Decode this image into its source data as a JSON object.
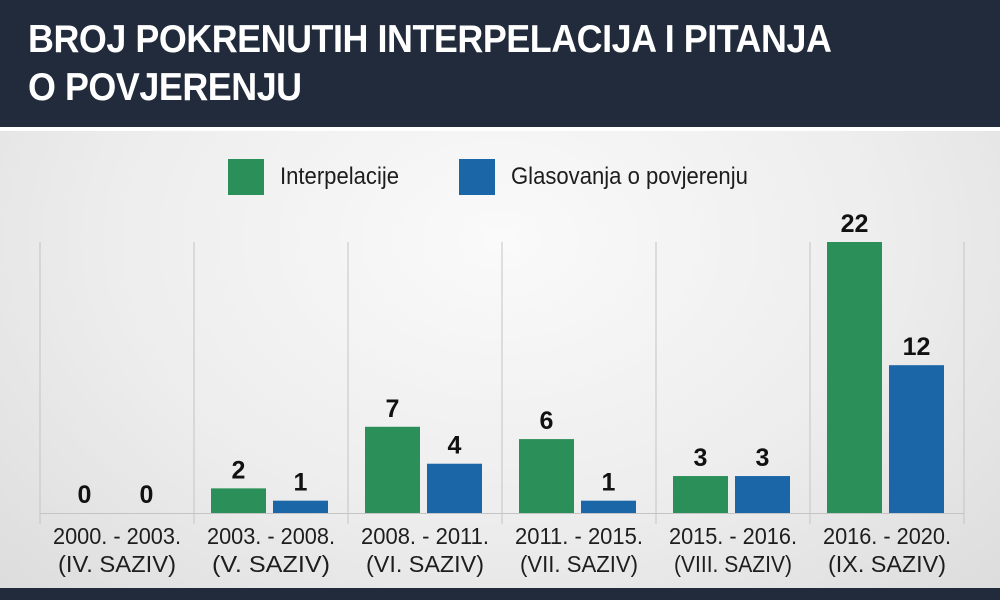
{
  "title_lines": [
    "BROJ POKRENUTIH INTERPELACIJA I PITANJA",
    "O POVJERENJU"
  ],
  "colors": {
    "header_bg": "#212b3c",
    "interpelacije": "#2a8f58",
    "glasovanja": "#1b66a6"
  },
  "legend": [
    {
      "label": "Interpelacije",
      "color": "#2a8f58"
    },
    {
      "label": "Glasovanja o povjerenju",
      "color": "#1b66a6"
    }
  ],
  "chart_data": {
    "type": "bar",
    "categories": [
      [
        "2000. - 2003.",
        "(IV. SAZIV)"
      ],
      [
        "2003. - 2008.",
        "(V. SAZIV)"
      ],
      [
        "2008. - 2011.",
        "(VI. SAZIV)"
      ],
      [
        "2011. - 2015.",
        "(VII. SAZIV)"
      ],
      [
        "2015. - 2016.",
        "(VIII. SAZIV)"
      ],
      [
        "2016. - 2020.",
        "(IX. SAZIV)"
      ]
    ],
    "series": [
      {
        "name": "Interpelacije",
        "values": [
          0,
          2,
          7,
          6,
          3,
          22
        ]
      },
      {
        "name": "Glasovanja o povjerenju",
        "values": [
          0,
          1,
          4,
          1,
          3,
          12
        ]
      }
    ],
    "ylim": [
      0,
      22
    ],
    "legend_position": "top-center",
    "grid": "vertical separators"
  }
}
